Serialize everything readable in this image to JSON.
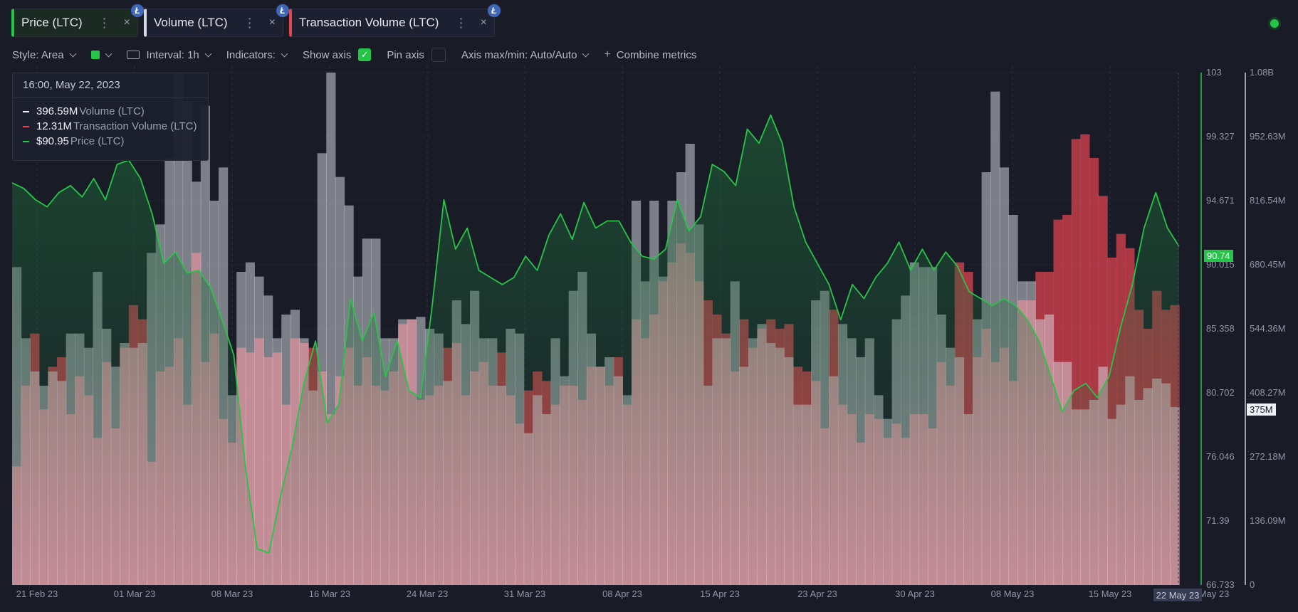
{
  "tabs": [
    {
      "label": "Price (LTC)",
      "color": "#26c548",
      "coin": "Ł"
    },
    {
      "label": "Volume (LTC)",
      "color": "#d8dbe3",
      "coin": "Ł"
    },
    {
      "label": "Transaction Volume (LTC)",
      "color": "#e34452",
      "coin": "Ł"
    }
  ],
  "tab_menu_glyph": "⋮",
  "tab_close_glyph": "×",
  "toolbar": {
    "style_label": "Style: Area",
    "interval_label": "Interval: 1h",
    "indicators_label": "Indicators:",
    "show_axis_label": "Show axis",
    "pin_axis_label": "Pin axis",
    "axis_minmax_label": "Axis max/min: Auto/Auto",
    "combine_label": "Combine metrics",
    "check_glyph": "✓"
  },
  "tooltip": {
    "date": "16:00, May 22, 2023",
    "rows": [
      {
        "value": "396.59M",
        "name": "Volume (LTC)",
        "color": "#e8eaf0"
      },
      {
        "value": "12.31M",
        "name": "Transaction Volume (LTC)",
        "color": "#e34452"
      },
      {
        "value": "$90.95",
        "name": "Price (LTC)",
        "color": "#26c548"
      }
    ]
  },
  "chart_data": {
    "type": "area",
    "x_tick_labels": [
      "21 Feb 23",
      "01 Mar 23",
      "08 Mar 23",
      "16 Mar 23",
      "24 Mar 23",
      "31 Mar 23",
      "08 Apr 23",
      "15 Apr 23",
      "23 Apr 23",
      "30 Apr 23",
      "08 May 23",
      "15 May 23",
      "22 May 23"
    ],
    "price_axis": {
      "min": 66.733,
      "max": 103,
      "ticks": [
        "103",
        "99.327",
        "94.671",
        "90.015",
        "85.358",
        "80.702",
        "76.046",
        "71.39",
        "66.733"
      ],
      "current": "90.74"
    },
    "volume_axis": {
      "min": 0,
      "max": 1080000000,
      "ticks": [
        "1.08B",
        "952.63M",
        "816.54M",
        "680.45M",
        "544.36M",
        "408.27M",
        "272.18M",
        "136.09M",
        "0"
      ],
      "current": "375M"
    },
    "current_date_label": "22 May 23",
    "series": [
      {
        "name": "Volume (LTC)",
        "unit": "LTC",
        "color": "#d8dbe3",
        "values": [
          670,
          520,
          450,
          420,
          450,
          430,
          530,
          530,
          500,
          660,
          540,
          460,
          510,
          500,
          510,
          700,
          760,
          900,
          1080,
          1020,
          850,
          1010,
          810,
          880,
          400,
          660,
          680,
          650,
          610,
          520,
          570,
          580,
          520,
          410,
          910,
          1080,
          860,
          800,
          650,
          730,
          730,
          520,
          520,
          560,
          560,
          565,
          540,
          530,
          430,
          600,
          550,
          620,
          520,
          520,
          420,
          540,
          530,
          320,
          400,
          360,
          520,
          440,
          620,
          660,
          530,
          460,
          480,
          440,
          400,
          810,
          640,
          810,
          650,
          810,
          870,
          930,
          760,
          420,
          520,
          520,
          640,
          460,
          520,
          550,
          510,
          500,
          480,
          380,
          380,
          600,
          620,
          440,
          550,
          520,
          480,
          520,
          400,
          350,
          560,
          610,
          680,
          670,
          670,
          570,
          500,
          480,
          360,
          560,
          870,
          1040,
          880,
          780,
          640,
          640,
          560,
          570,
          470,
          470,
          370,
          370,
          390,
          460,
          350,
          380,
          440,
          390,
          415,
          435,
          425,
          375
        ]
      },
      {
        "name": "Transaction Volume (LTC)",
        "unit": "LTC",
        "color": "#e34452",
        "values": [
          250,
          420,
          530,
          370,
          460,
          480,
          360,
          440,
          400,
          310,
          470,
          330,
          500,
          590,
          560,
          260,
          450,
          460,
          520,
          380,
          700,
          470,
          530,
          350,
          300,
          500,
          490,
          520,
          480,
          490,
          380,
          520,
          510,
          500,
          450,
          360,
          440,
          500,
          420,
          480,
          420,
          410,
          450,
          550,
          560,
          390,
          400,
          420,
          500,
          510,
          400,
          450,
          470,
          420,
          490,
          400,
          340,
          410,
          450,
          430,
          380,
          420,
          420,
          390,
          460,
          460,
          420,
          480,
          380,
          560,
          520,
          570,
          640,
          680,
          720,
          700,
          640,
          600,
          570,
          530,
          450,
          560,
          500,
          540,
          560,
          540,
          550,
          460,
          450,
          430,
          330,
          580,
          380,
          360,
          300,
          360,
          350,
          310,
          340,
          310,
          360,
          360,
          330,
          470,
          420,
          680,
          660,
          480,
          540,
          470,
          500,
          430,
          600,
          600,
          660,
          660,
          770,
          780,
          940,
          950,
          900,
          820,
          690,
          740,
          710,
          580,
          540,
          620,
          580,
          590
        ]
      },
      {
        "name": "Price (LTC)",
        "unit": "USD",
        "color": "#26c548",
        "x": [
          0,
          0.01,
          0.02,
          0.03,
          0.04,
          0.05,
          0.06,
          0.07,
          0.08,
          0.09,
          0.1,
          0.11,
          0.12,
          0.13,
          0.14,
          0.15,
          0.16,
          0.17,
          0.18,
          0.19,
          0.2,
          0.21,
          0.22,
          0.23,
          0.24,
          0.25,
          0.26,
          0.27,
          0.28,
          0.29,
          0.3,
          0.31,
          0.32,
          0.33,
          0.34,
          0.35,
          0.36,
          0.37,
          0.38,
          0.39,
          0.4,
          0.41,
          0.42,
          0.43,
          0.44,
          0.45,
          0.46,
          0.47,
          0.48,
          0.49,
          0.5,
          0.51,
          0.52,
          0.53,
          0.54,
          0.55,
          0.56,
          0.57,
          0.58,
          0.59,
          0.6,
          0.61,
          0.62,
          0.63,
          0.64,
          0.65,
          0.66,
          0.67,
          0.68,
          0.69,
          0.7,
          0.71,
          0.72,
          0.73,
          0.74,
          0.75,
          0.76,
          0.77,
          0.78,
          0.79,
          0.8,
          0.81,
          0.82,
          0.83,
          0.84,
          0.85,
          0.86,
          0.87,
          0.88,
          0.89,
          0.9,
          0.91,
          0.92,
          0.93,
          0.94,
          0.95,
          0.96,
          0.97,
          0.98,
          0.99,
          1
        ],
        "values": [
          95.2,
          94.8,
          94.0,
          93.5,
          94.5,
          95.0,
          94.2,
          95.5,
          94.0,
          96.5,
          96.8,
          95.5,
          93.0,
          89.5,
          90.3,
          88.8,
          89.0,
          87.8,
          85.5,
          83.0,
          75.0,
          69.3,
          69.0,
          73.0,
          76.5,
          81.0,
          84.0,
          78.2,
          79.5,
          87.0,
          84.0,
          86.0,
          81.5,
          84.0,
          80.5,
          80.0,
          86.5,
          94.0,
          90.5,
          92.0,
          89.0,
          88.5,
          88.0,
          88.5,
          90.0,
          89.0,
          91.5,
          93.0,
          91.2,
          93.8,
          92.0,
          92.5,
          92.5,
          91.0,
          90.0,
          89.8,
          90.5,
          94.0,
          91.8,
          92.8,
          96.5,
          96.0,
          95.0,
          99.0,
          98.0,
          100.0,
          98.0,
          93.5,
          91.0,
          89.5,
          88.0,
          85.5,
          88.0,
          87.0,
          88.5,
          89.5,
          91.0,
          89.0,
          90.5,
          89.0,
          90.3,
          89.3,
          87.5,
          87.0,
          86.5,
          87.0,
          86.5,
          85.5,
          84.0,
          81.5,
          79.0,
          80.5,
          81.0,
          80.0,
          81.5,
          85.0,
          88.0,
          92.0,
          94.5,
          92.0,
          90.7
        ]
      }
    ]
  }
}
